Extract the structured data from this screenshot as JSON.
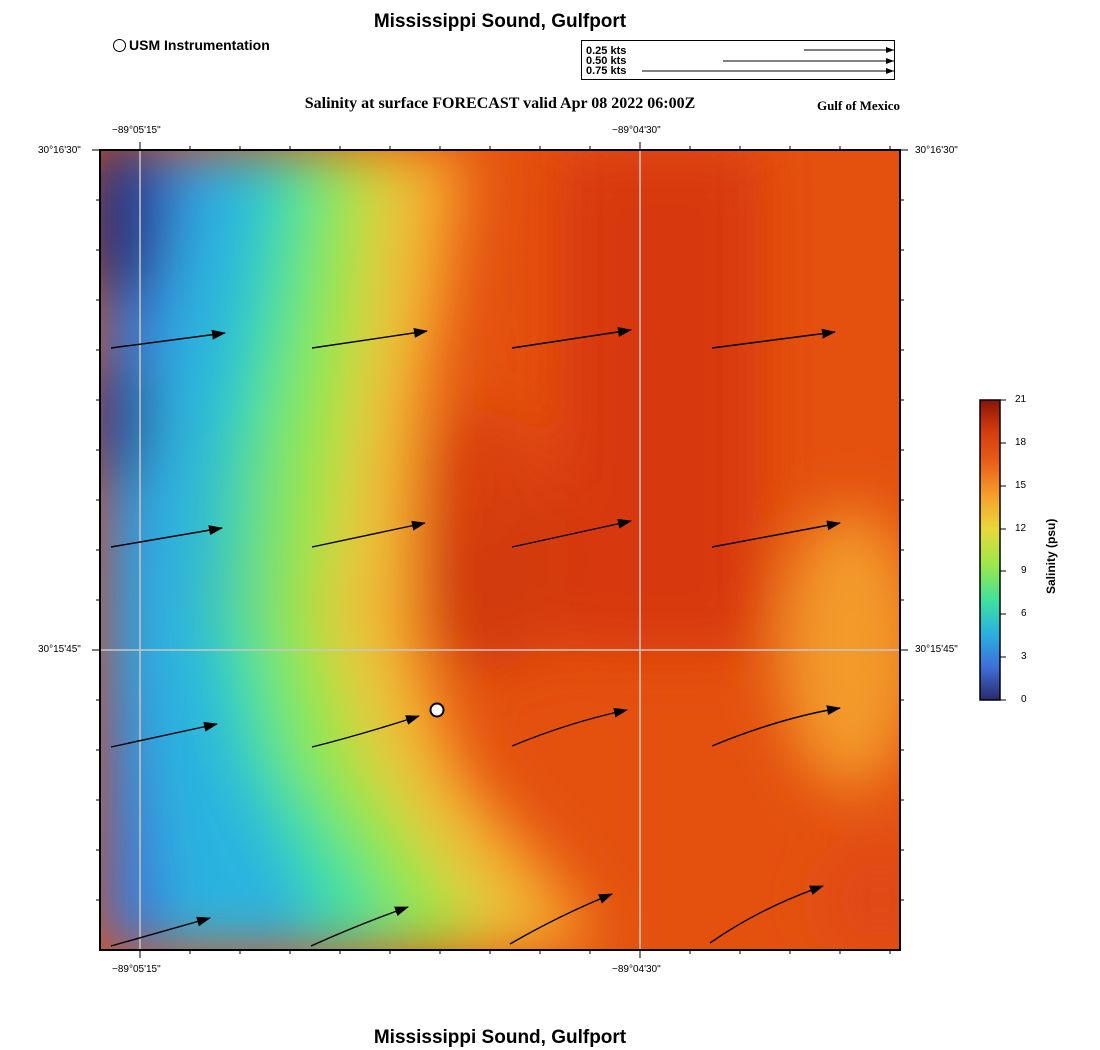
{
  "header": {
    "title": "Mississippi Sound, Gulfport",
    "subtitle": "Salinity at surface FORECAST valid Apr 08 2022 06:00Z",
    "region": "Gulf of Mexico",
    "footer_title": "Mississippi Sound, Gulfport"
  },
  "legend": {
    "station_label": "USM Instrumentation",
    "vector_scale": [
      "0.25 kts",
      "0.50 kts",
      "0.75 kts"
    ]
  },
  "map": {
    "lon_labels": [
      "−89°05'15\"",
      "−89°04'30\""
    ],
    "lat_labels": [
      "30°16'30\"",
      "30°15'45\""
    ],
    "station_icon": "circle-marker",
    "current_icon": "arrow"
  },
  "colorbar": {
    "title": "Salinity (psu)",
    "ticks": [
      "21",
      "18",
      "15",
      "12",
      "9",
      "6",
      "3",
      "0"
    ],
    "min": 0,
    "max": 21,
    "colors": [
      "#2a2a6e",
      "#3f6fd8",
      "#2ab0e0",
      "#3de1a0",
      "#9be84a",
      "#e8d83a",
      "#f6a02c",
      "#e85a18",
      "#d23a0c",
      "#8a1408"
    ]
  }
}
